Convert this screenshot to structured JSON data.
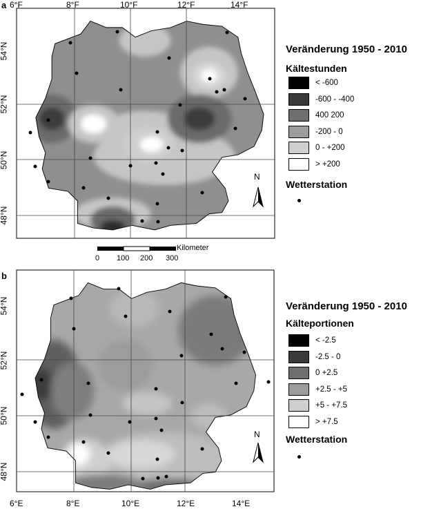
{
  "panels": [
    {
      "letter": "a",
      "legend_title": "Veränderung 1950 - 2010",
      "legend_subtitle": "Kältestunden",
      "classes": [
        {
          "label": "< -600",
          "color": "#000000"
        },
        {
          "label": "-600 - -400",
          "color": "#3a3a3a"
        },
        {
          "label": "400   200",
          "color": "#6f6f6f"
        },
        {
          "label": "-200 - 0",
          "color": "#9c9c9c"
        },
        {
          "label": "0 - +200",
          "color": "#cfcfcf"
        },
        {
          "label": "> +200",
          "color": "#ffffff"
        }
      ],
      "station_label": "Wetterstation",
      "lon_ticks": [
        "6°F",
        "8°F",
        "10°F",
        "12°F",
        "14°F"
      ],
      "lat_ticks": [
        "54°N",
        "52°N",
        "50°N",
        "48°N"
      ],
      "north_label": "N"
    },
    {
      "letter": "b",
      "legend_title": "Veränderung 1950 - 2010",
      "legend_subtitle": "Kälteportionen",
      "classes": [
        {
          "label": "< -2.5",
          "color": "#000000"
        },
        {
          "label": "-2.5 - 0",
          "color": "#3a3a3a"
        },
        {
          "label": "0   +2.5",
          "color": "#6f6f6f"
        },
        {
          "label": "+2.5 - +5",
          "color": "#9c9c9c"
        },
        {
          "label": "+5 - +7.5",
          "color": "#cfcfcf"
        },
        {
          "label": "> +7.5",
          "color": "#ffffff"
        }
      ],
      "station_label": "Wetterstation",
      "lon_ticks": [
        "6°E",
        "8°E",
        "10°E",
        "12°E",
        "14°E"
      ],
      "lat_ticks": [
        "54°N",
        "52°N",
        "50°N",
        "48°N"
      ],
      "north_label": "N"
    }
  ],
  "scale_bar": {
    "unit": "Kilometer",
    "ticks": [
      "0",
      "100",
      "200",
      "300"
    ]
  }
}
